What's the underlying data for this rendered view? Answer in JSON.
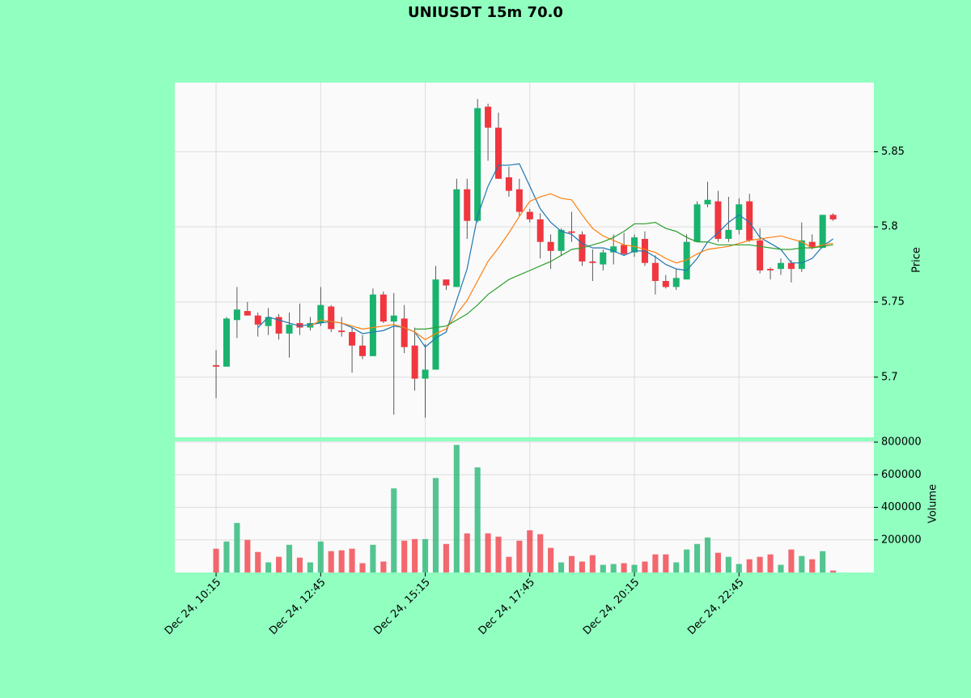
{
  "chart_data": {
    "type": "candlestick",
    "title": "UNIUSDT 15m 70.0",
    "y_label": "Price",
    "volume_label": "Volume",
    "open": [
      5.708,
      5.707,
      5.738,
      5.744,
      5.741,
      5.734,
      5.74,
      5.729,
      5.736,
      5.733,
      5.736,
      5.747,
      5.731,
      5.73,
      5.721,
      5.714,
      5.755,
      5.737,
      5.739,
      5.721,
      5.699,
      5.705,
      5.765,
      5.76,
      5.825,
      5.804,
      5.88,
      5.866,
      5.833,
      5.825,
      5.81,
      5.805,
      5.79,
      5.784,
      5.797,
      5.795,
      5.777,
      5.775,
      5.783,
      5.788,
      5.783,
      5.792,
      5.776,
      5.764,
      5.76,
      5.765,
      5.79,
      5.815,
      5.817,
      5.792,
      5.798,
      5.817,
      5.791,
      5.772,
      5.772,
      5.776,
      5.772,
      5.79,
      5.786,
      5.808
    ],
    "high": [
      5.718,
      5.74,
      5.76,
      5.75,
      5.743,
      5.746,
      5.742,
      5.743,
      5.749,
      5.74,
      5.76,
      5.748,
      5.74,
      5.733,
      5.728,
      5.759,
      5.757,
      5.756,
      5.748,
      5.733,
      5.722,
      5.774,
      5.765,
      5.832,
      5.832,
      5.885,
      5.882,
      5.876,
      5.84,
      5.832,
      5.812,
      5.809,
      5.795,
      5.799,
      5.81,
      5.797,
      5.785,
      5.785,
      5.795,
      5.796,
      5.795,
      5.797,
      5.781,
      5.768,
      5.772,
      5.795,
      5.817,
      5.83,
      5.824,
      5.82,
      5.819,
      5.822,
      5.799,
      5.773,
      5.779,
      5.778,
      5.803,
      5.795,
      5.808,
      5.809
    ],
    "low": [
      5.686,
      5.707,
      5.726,
      5.741,
      5.727,
      5.728,
      5.725,
      5.713,
      5.728,
      5.731,
      5.734,
      5.73,
      5.727,
      5.703,
      5.712,
      5.714,
      5.736,
      5.675,
      5.716,
      5.691,
      5.673,
      5.705,
      5.758,
      5.76,
      5.792,
      5.803,
      5.844,
      5.832,
      5.82,
      5.807,
      5.803,
      5.779,
      5.772,
      5.781,
      5.79,
      5.774,
      5.764,
      5.771,
      5.775,
      5.781,
      5.78,
      5.774,
      5.755,
      5.759,
      5.758,
      5.765,
      5.79,
      5.813,
      5.79,
      5.79,
      5.795,
      5.79,
      5.769,
      5.765,
      5.768,
      5.763,
      5.77,
      5.785,
      5.786,
      5.804
    ],
    "close": [
      5.707,
      5.739,
      5.745,
      5.741,
      5.735,
      5.74,
      5.729,
      5.735,
      5.733,
      5.736,
      5.748,
      5.732,
      5.73,
      5.721,
      5.714,
      5.755,
      5.737,
      5.741,
      5.72,
      5.699,
      5.705,
      5.765,
      5.761,
      5.825,
      5.804,
      5.879,
      5.866,
      5.832,
      5.824,
      5.81,
      5.805,
      5.79,
      5.784,
      5.798,
      5.796,
      5.777,
      5.776,
      5.783,
      5.787,
      5.782,
      5.793,
      5.776,
      5.764,
      5.76,
      5.766,
      5.79,
      5.815,
      5.818,
      5.792,
      5.798,
      5.815,
      5.791,
      5.771,
      5.771,
      5.776,
      5.772,
      5.791,
      5.786,
      5.808,
      5.805
    ],
    "volume": [
      146000,
      190000,
      304000,
      200000,
      126000,
      62000,
      96000,
      170000,
      91000,
      62000,
      190000,
      131000,
      136000,
      146000,
      57000,
      170000,
      67000,
      516000,
      195000,
      205000,
      205000,
      580000,
      175000,
      783000,
      240000,
      645000,
      240000,
      220000,
      96000,
      195000,
      259000,
      235000,
      151000,
      62000,
      101000,
      67000,
      106000,
      47000,
      52000,
      57000,
      47000,
      67000,
      111000,
      111000,
      62000,
      141000,
      175000,
      215000,
      121000,
      96000,
      52000,
      81000,
      96000,
      111000,
      47000,
      141000,
      101000,
      81000,
      131000,
      12000
    ],
    "up_color": "#19b36e",
    "down_color": "#f0363f",
    "series": [
      {
        "color": "#1f77b4",
        "values": [
          null,
          null,
          null,
          null,
          5.733,
          5.74,
          5.738,
          5.736,
          5.734,
          5.735,
          5.736,
          5.737,
          5.736,
          5.733,
          5.729,
          5.73,
          5.731,
          5.734,
          5.733,
          5.73,
          5.72,
          5.726,
          5.73,
          5.751,
          5.772,
          5.807,
          5.827,
          5.841,
          5.841,
          5.842,
          5.827,
          5.812,
          5.803,
          5.797,
          5.795,
          5.789,
          5.786,
          5.786,
          5.784,
          5.781,
          5.784,
          5.784,
          5.78,
          5.775,
          5.772,
          5.771,
          5.779,
          5.79,
          5.796,
          5.803,
          5.808,
          5.803,
          5.793,
          5.789,
          5.785,
          5.776,
          5.776,
          5.779,
          5.787,
          5.792
        ]
      },
      {
        "color": "#ff7f0e",
        "values": [
          null,
          null,
          null,
          null,
          null,
          null,
          null,
          null,
          null,
          5.734,
          5.738,
          5.737,
          5.736,
          5.734,
          5.732,
          5.733,
          5.734,
          5.735,
          5.733,
          5.73,
          5.725,
          5.729,
          5.732,
          5.742,
          5.751,
          5.764,
          5.777,
          5.786,
          5.796,
          5.807,
          5.817,
          5.82,
          5.822,
          5.819,
          5.818,
          5.808,
          5.799,
          5.794,
          5.791,
          5.788,
          5.787,
          5.785,
          5.783,
          5.779,
          5.776,
          5.778,
          5.782,
          5.785,
          5.786,
          5.787,
          5.789,
          5.791,
          5.792,
          5.793,
          5.794,
          5.792,
          5.79,
          5.786,
          5.788,
          5.789
        ]
      },
      {
        "color": "#2ca02c",
        "values": [
          null,
          null,
          null,
          null,
          null,
          null,
          null,
          null,
          null,
          null,
          null,
          null,
          null,
          null,
          null,
          null,
          null,
          null,
          null,
          5.732,
          5.732,
          5.733,
          5.734,
          5.738,
          5.742,
          5.748,
          5.755,
          5.76,
          5.765,
          5.768,
          5.771,
          5.774,
          5.777,
          5.781,
          5.785,
          5.786,
          5.788,
          5.79,
          5.793,
          5.797,
          5.802,
          5.802,
          5.803,
          5.799,
          5.797,
          5.793,
          5.79,
          5.79,
          5.788,
          5.788,
          5.788,
          5.788,
          5.787,
          5.786,
          5.785,
          5.785,
          5.786,
          5.786,
          5.787,
          5.788
        ]
      }
    ],
    "xlim": [
      -3.95,
      62.9
    ],
    "xticks": [
      {
        "value": 0,
        "label": "Dec 24, 10:15"
      },
      {
        "value": 10,
        "label": "Dec 24, 12:45"
      },
      {
        "value": 20,
        "label": "Dec 24, 15:15"
      },
      {
        "value": 30,
        "label": "Dec 24, 17:45"
      },
      {
        "value": 40,
        "label": "Dec 24, 20:15"
      },
      {
        "value": 50,
        "label": "Dec 24, 22:45"
      }
    ],
    "ylim": [
      5.66,
      5.896
    ],
    "yticks": [
      5.7,
      5.75,
      5.8,
      5.85
    ],
    "volume_ylim": [
      0,
      805000
    ],
    "volume_yticks": [
      200000,
      400000,
      600000,
      800000
    ],
    "grid": true
  }
}
